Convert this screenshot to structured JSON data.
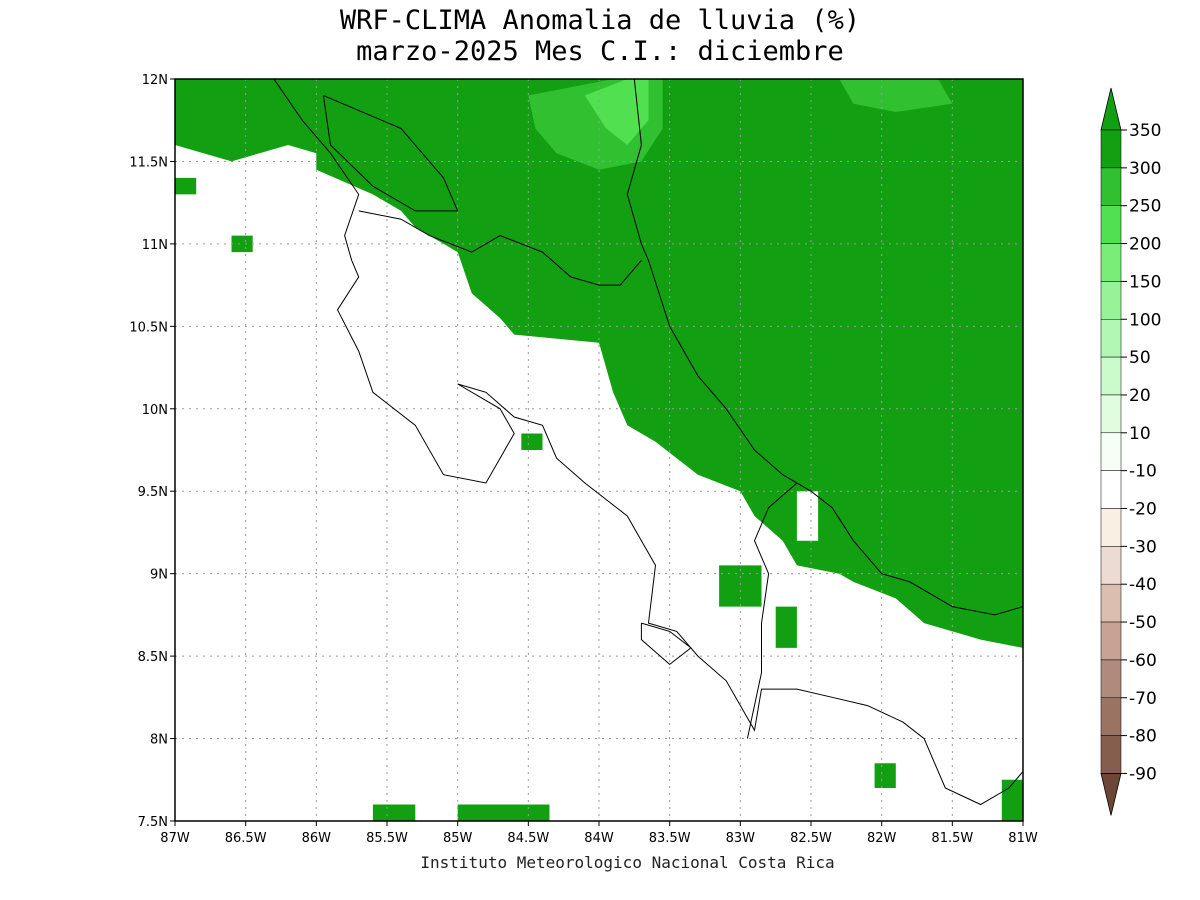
{
  "title": {
    "line1": "WRF-CLIMA Anomalia de lluvia (%)",
    "line2": "marzo-2025 Mes C.I.: diciembre"
  },
  "credit": "Instituto Meteorologico Nacional Costa Rica",
  "map": {
    "lon_range": [
      -87,
      -81
    ],
    "lat_range": [
      7.5,
      12
    ],
    "grid": "dotted",
    "lon_labels": [
      "87W",
      "86.5W",
      "86W",
      "85.5W",
      "85W",
      "84.5W",
      "84W",
      "83.5W",
      "83W",
      "82.5W",
      "82W",
      "81.5W",
      "81W"
    ],
    "lat_labels": [
      "7.5N",
      "8N",
      "8.5N",
      "9N",
      "9.5N",
      "10N",
      "10.5N",
      "11N",
      "11.5N",
      "12N"
    ],
    "colors": {
      "frame": "#000000",
      "grid": "#9a9a9a",
      "anomaly_300_350": "#12a012",
      "anomaly_250_300": "#30c030",
      "anomaly_200_250": "#50e050"
    }
  },
  "colorbar": {
    "labels": [
      "350",
      "300",
      "250",
      "200",
      "150",
      "100",
      "50",
      "20",
      "10",
      "-10",
      "-20",
      "-30",
      "-40",
      "-50",
      "-60",
      "-70",
      "-80",
      "-90"
    ],
    "colors": [
      "#12a012",
      "#30c030",
      "#50e050",
      "#78ee78",
      "#98f398",
      "#b2f7b2",
      "#cbfacb",
      "#e0fde0",
      "#f6fff6",
      "#ffffff",
      "#faefe3",
      "#ecdbd3",
      "#dcbeae",
      "#c8a393",
      "#b08a7a",
      "#9a7362",
      "#855e4d",
      "#6e4638"
    ],
    "arrow_top_color": "#12a012",
    "arrow_bottom_color": "#6e4638"
  }
}
